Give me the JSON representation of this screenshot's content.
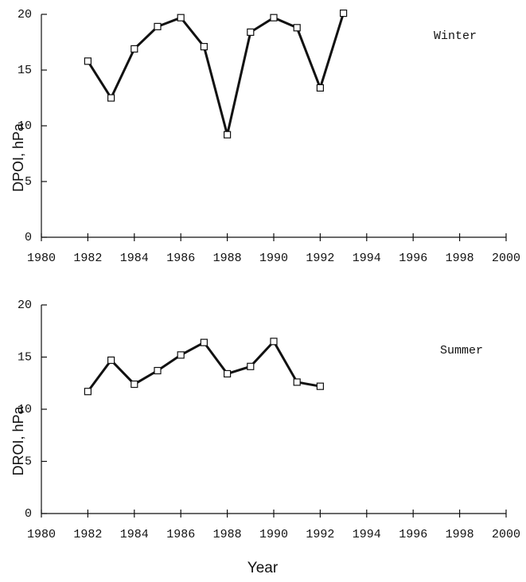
{
  "chart_data": [
    {
      "type": "line",
      "title": "Winter",
      "y_label": "DPOI, hPa",
      "x": [
        1982,
        1983,
        1984,
        1985,
        1986,
        1987,
        1988,
        1989,
        1990,
        1991,
        1992,
        1993
      ],
      "series": [
        {
          "name": "Winter",
          "color": "#111111",
          "values": [
            15.8,
            12.5,
            16.9,
            18.9,
            19.7,
            17.1,
            9.2,
            18.4,
            19.7,
            18.8,
            13.4,
            20.1
          ]
        }
      ],
      "xlim": [
        1980,
        2000
      ],
      "xticks": [
        1980,
        1982,
        1984,
        1986,
        1988,
        1990,
        1992,
        1994,
        1996,
        1998,
        2000
      ],
      "ylim": [
        0,
        20
      ],
      "yticks": [
        0,
        5,
        10,
        15,
        20
      ]
    },
    {
      "type": "line",
      "title": "Summer",
      "y_label": "DROI, hPa",
      "x_label": "Year",
      "x": [
        1982,
        1983,
        1984,
        1985,
        1986,
        1987,
        1988,
        1989,
        1990,
        1991,
        1992
      ],
      "series": [
        {
          "name": "Summer",
          "color": "#111111",
          "values": [
            11.7,
            14.7,
            12.4,
            13.7,
            15.2,
            16.4,
            13.4,
            14.1,
            16.5,
            12.6,
            12.2
          ]
        }
      ],
      "xlim": [
        1980,
        2000
      ],
      "xticks": [
        1980,
        1982,
        1984,
        1986,
        1988,
        1990,
        1992,
        1994,
        1996,
        1998,
        2000
      ],
      "ylim": [
        0,
        20
      ],
      "yticks": [
        0,
        5,
        10,
        15,
        20
      ]
    }
  ]
}
